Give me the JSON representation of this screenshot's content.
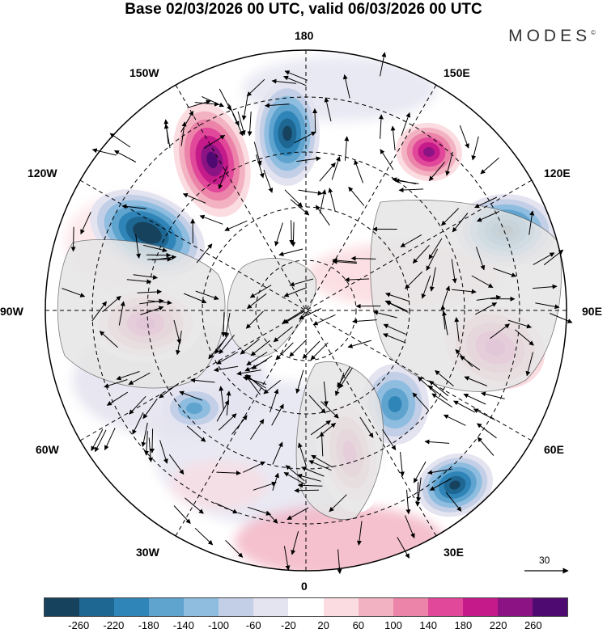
{
  "title": "Base 02/03/2026 00 UTC, valid 06/03/2026 00 UTC",
  "brand": "MODES",
  "brand_mark": "©",
  "longitude_labels": {
    "lon_180": "180",
    "lon_150e": "150E",
    "lon_120e": "120E",
    "lon_90e": "90E",
    "lon_60e": "60E",
    "lon_30e": "30E",
    "lon_0": "0",
    "lon_30w": "30W",
    "lon_60w": "60W",
    "lon_90w": "90W",
    "lon_120w": "120W",
    "lon_150w": "150W"
  },
  "vector_scale_label": "30",
  "colorbar": {
    "colors": [
      "#17425e",
      "#1e6793",
      "#3085b8",
      "#5fa3cf",
      "#8fbde0",
      "#c2cfe6",
      "#e4e3f0",
      "#ffffff",
      "#fbdce1",
      "#f3b2c2",
      "#ec84aa",
      "#e1489a",
      "#c51b8a",
      "#8b1383",
      "#4f0a72"
    ],
    "tick_labels": [
      "-260",
      "-220",
      "-180",
      "-140",
      "-100",
      "-60",
      "-20",
      "20",
      "60",
      "100",
      "140",
      "180",
      "220",
      "260"
    ]
  },
  "anomaly_centers": [
    {
      "sign": "positive",
      "intensity": 260
    },
    {
      "sign": "negative",
      "intensity": -220
    },
    {
      "sign": "positive",
      "intensity": 220
    },
    {
      "sign": "negative",
      "intensity": -260
    },
    {
      "sign": "negative",
      "intensity": -220
    },
    {
      "sign": "positive",
      "intensity": 180
    },
    {
      "sign": "positive",
      "intensity": 180
    },
    {
      "sign": "negative",
      "intensity": -220
    },
    {
      "sign": "negative",
      "intensity": -140
    },
    {
      "sign": "positive",
      "intensity": 140
    },
    {
      "sign": "negative",
      "intensity": -100
    }
  ]
}
